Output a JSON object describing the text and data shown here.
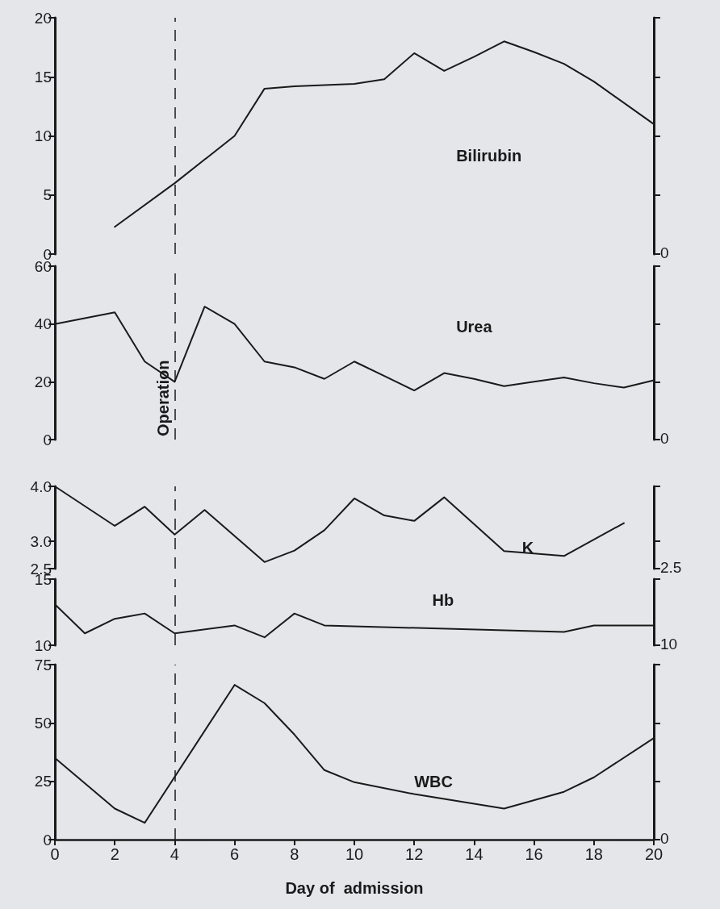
{
  "chart_data": [
    {
      "type": "line",
      "xlim": [
        0,
        20
      ],
      "xticks": [
        0,
        2,
        4,
        6,
        8,
        10,
        12,
        14,
        16,
        18,
        20
      ],
      "ylim": [
        0,
        20
      ],
      "yticks": [
        0,
        5,
        10,
        15,
        20
      ],
      "annotations": [
        "0"
      ],
      "tick_labels": "y",
      "grid": false,
      "legend": false,
      "marker": "none",
      "line_style": "solid",
      "series": [
        {
          "name": "Bilirubin",
          "color": "#1a1a1a",
          "x": [
            2,
            4,
            6,
            7,
            8,
            10,
            11,
            12,
            13,
            14,
            15,
            16,
            17,
            18,
            20
          ],
          "values": [
            2.3,
            6,
            10,
            14,
            14.2,
            14.4,
            14.8,
            17,
            15.5,
            16.7,
            18,
            17.1,
            16.1,
            14.6,
            11
          ]
        }
      ],
      "ref_lines": [
        {
          "axis": "x",
          "value": 4,
          "line_style": "dashed",
          "color": "#1a1a1a"
        }
      ]
    },
    {
      "type": "line",
      "xlim": [
        0,
        20
      ],
      "xticks": [
        0,
        2,
        4,
        6,
        8,
        10,
        12,
        14,
        16,
        18,
        20
      ],
      "ylim": [
        0,
        60
      ],
      "yticks": [
        0,
        20,
        40,
        60
      ],
      "annotations": [
        "0"
      ],
      "tick_labels": "y",
      "grid": false,
      "legend": false,
      "marker": "none",
      "line_style": "solid",
      "series": [
        {
          "name": "Urea",
          "color": "#1a1a1a",
          "x": [
            0,
            2,
            3,
            4,
            5,
            6,
            7,
            8,
            9,
            10,
            11,
            12,
            13,
            14,
            15,
            16,
            17,
            18,
            19,
            20
          ],
          "values": [
            40,
            44,
            27,
            20,
            46,
            40,
            27,
            25,
            21,
            27,
            22,
            17,
            23,
            21,
            18.5,
            20,
            21.5,
            19.5,
            18,
            20.5
          ]
        }
      ],
      "ref_lines": [
        {
          "axis": "x",
          "value": 4,
          "line_style": "dashed",
          "color": "#1a1a1a",
          "label": "Operation"
        }
      ]
    },
    {
      "type": "line",
      "xlim": [
        0,
        20
      ],
      "xticks": [
        0,
        2,
        4,
        6,
        8,
        10,
        12,
        14,
        16,
        18,
        20
      ],
      "ylim": [
        2.5,
        4.0
      ],
      "yticks": [
        {
          "value": 2.5,
          "label": "2.5"
        },
        {
          "value": 3.0,
          "label": "3.0"
        },
        {
          "value": 4.0,
          "label": "4.0"
        }
      ],
      "annotations": [
        "2.5"
      ],
      "tick_labels": "y",
      "grid": false,
      "legend": false,
      "marker": "none",
      "line_style": "solid",
      "series": [
        {
          "name": "K",
          "color": "#1a1a1a",
          "x": [
            0,
            2,
            3,
            4,
            5,
            7,
            8,
            9,
            10,
            11,
            12,
            13,
            15,
            17,
            19
          ],
          "values": [
            4.0,
            3.28,
            3.63,
            3.12,
            3.57,
            2.62,
            2.83,
            3.2,
            3.78,
            3.47,
            3.37,
            3.8,
            2.82,
            2.73,
            3.33
          ]
        }
      ],
      "ref_lines": [
        {
          "axis": "x",
          "value": 4,
          "line_style": "dashed",
          "color": "#1a1a1a"
        }
      ]
    },
    {
      "type": "line",
      "xlim": [
        0,
        20
      ],
      "xticks": [
        0,
        2,
        4,
        6,
        8,
        10,
        12,
        14,
        16,
        18,
        20
      ],
      "ylim": [
        10,
        15
      ],
      "yticks": [
        10,
        15
      ],
      "annotations": [
        "10"
      ],
      "tick_labels": "y",
      "grid": false,
      "legend": false,
      "marker": "none",
      "line_style": "solid",
      "series": [
        {
          "name": "Hb",
          "color": "#1a1a1a",
          "x": [
            0,
            1,
            2,
            3,
            4,
            6,
            7,
            8,
            9,
            17,
            18,
            20
          ],
          "values": [
            13.1,
            10.9,
            12,
            12.4,
            10.9,
            11.5,
            10.6,
            12.4,
            11.5,
            11,
            11.5,
            11.5
          ]
        }
      ],
      "ref_lines": [
        {
          "axis": "x",
          "value": 4,
          "line_style": "dashed",
          "color": "#1a1a1a"
        }
      ]
    },
    {
      "type": "line",
      "xlabel": "Day of  admission",
      "xlim": [
        0,
        20
      ],
      "xticks": [
        0,
        2,
        4,
        6,
        8,
        10,
        12,
        14,
        16,
        18,
        20
      ],
      "ylim": [
        0,
        75
      ],
      "yticks": [
        0,
        25,
        50,
        75
      ],
      "annotations": [
        "0"
      ],
      "grid": false,
      "legend": false,
      "marker": "none",
      "line_style": "solid",
      "series": [
        {
          "name": "WBC",
          "color": "#1a1a1a",
          "x": [
            0,
            2,
            3,
            6,
            7,
            8,
            9,
            10,
            12,
            15,
            17,
            18,
            20
          ],
          "values": [
            35,
            13.3,
            7.2,
            66.3,
            58.5,
            45,
            29.8,
            24.6,
            19.5,
            13.3,
            20.5,
            26.7,
            43.5
          ]
        }
      ],
      "ref_lines": [
        {
          "axis": "x",
          "value": 4,
          "line_style": "dashed",
          "color": "#1a1a1a"
        }
      ]
    }
  ]
}
